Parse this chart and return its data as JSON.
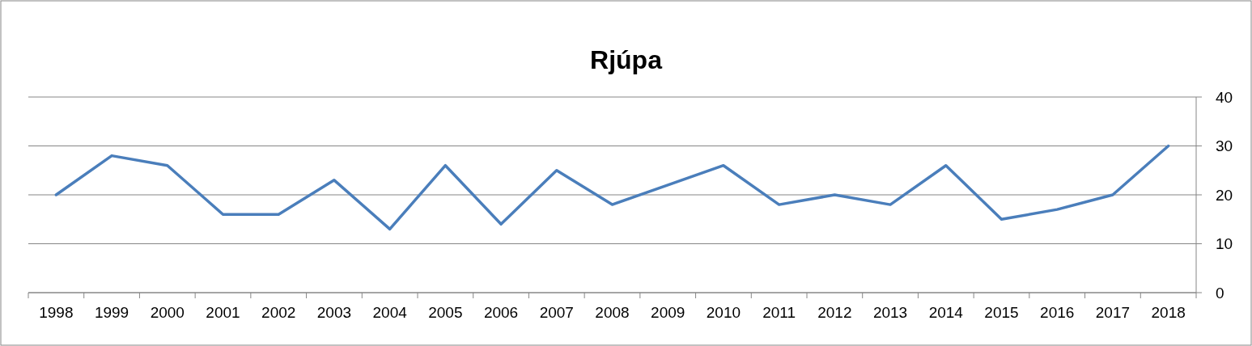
{
  "chart_data": {
    "type": "line",
    "title": "Rjúpa",
    "categories": [
      "1998",
      "1999",
      "2000",
      "2001",
      "2002",
      "2003",
      "2004",
      "2005",
      "2006",
      "2007",
      "2008",
      "2009",
      "2010",
      "2011",
      "2012",
      "2013",
      "2014",
      "2015",
      "2016",
      "2017",
      "2018"
    ],
    "series": [
      {
        "color": "#4a7ebb",
        "values": [
          20,
          28,
          26,
          16,
          16,
          23,
          13,
          26,
          14,
          25,
          18,
          22,
          26,
          18,
          20,
          18,
          26,
          15,
          17,
          20,
          30
        ]
      }
    ],
    "ylim": [
      0,
      40
    ],
    "yticks": [
      0,
      10,
      20,
      30,
      40
    ],
    "grid": "y",
    "marker": "none",
    "line_style": "solid"
  }
}
